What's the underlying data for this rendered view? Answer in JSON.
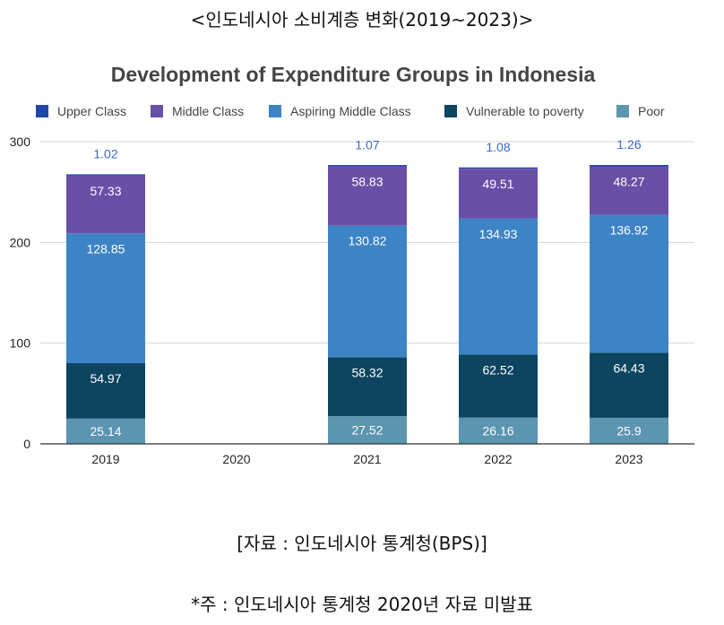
{
  "page": {
    "top_title": "<인도네시아 소비계층 변화(2019~2023)>",
    "source": "[자료 : 인도네시아 통계청(BPS)]",
    "note": "*주 : 인도네시아 통계청 2020년 자료 미발표"
  },
  "chart_data": {
    "type": "bar",
    "stacked": true,
    "title": "Development of Expenditure Groups in Indonesia",
    "xlabel": "",
    "ylabel": "",
    "categories": [
      "2019",
      "2020",
      "2021",
      "2022",
      "2023"
    ],
    "ylim": [
      0,
      300
    ],
    "yticks": [
      0,
      100,
      200,
      300
    ],
    "grid": true,
    "legend_position": "top",
    "series": [
      {
        "name": "Poor",
        "color": "#5b95b0",
        "values": [
          25.14,
          null,
          27.52,
          26.16,
          25.9
        ]
      },
      {
        "name": "Vulnerable to poverty",
        "color": "#0d4560",
        "values": [
          54.97,
          null,
          58.32,
          62.52,
          64.43
        ]
      },
      {
        "name": "Aspiring Middle Class",
        "color": "#3d84c6",
        "values": [
          128.85,
          null,
          130.82,
          134.93,
          136.92
        ]
      },
      {
        "name": "Middle Class",
        "color": "#6a4fa6",
        "values": [
          57.33,
          null,
          58.83,
          49.51,
          48.27
        ]
      },
      {
        "name": "Upper Class",
        "color": "#2246a8",
        "values": [
          1.02,
          null,
          1.07,
          1.08,
          1.26
        ]
      }
    ],
    "legend_order": [
      "Upper Class",
      "Middle Class",
      "Aspiring Middle Class",
      "Vulnerable to poverty",
      "Poor"
    ],
    "label_colors": {
      "inside": "#ffffff",
      "above": "#3a68c8"
    }
  }
}
